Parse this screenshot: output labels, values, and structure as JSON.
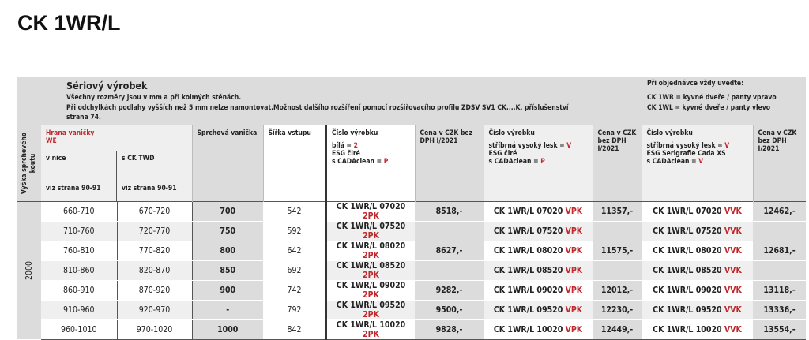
{
  "title": "CK 1WR/L",
  "band": {
    "heading": "Sériový výrobek",
    "line1": "Všechny rozměry jsou v mm a při kolmých stěnách.",
    "line2": "Při odchylkách podlahy vyšších než 5 mm nelze namontovat.Možnost dalšího rozšíření pomocí rozšiřovacího profilu ZDSV SV1 CK....K, příslušenství",
    "line3": "strana 74.",
    "order_title": "Při objednávce vždy uveďte:",
    "order1": "CK 1WR = kyvné dveře / panty vpravo",
    "order2": "CK 1WL = kyvné dveře / panty vlevo"
  },
  "headers": {
    "height": "Výška sprchového koutu",
    "edge": "Hrana vaničky",
    "edge2": "WE",
    "niche": "v nice",
    "twd": "s CK TWD",
    "see1": "viz strana 90-91",
    "see2": "viz strana 90-91",
    "tray": "Sprchová vanička",
    "width": "Šířka vstupu",
    "code": "Číslo výrobku",
    "white": "bílá = ",
    "white_c": "2",
    "esg": "ESG čiré",
    "clean": "s CADAclean = ",
    "clean_c": "P",
    "price": "Cena v CZK bez DPH I/2021",
    "silver": "stříbrná vysoký lesk = ",
    "silver_c": "V",
    "esg2": "ESG Serigrafie Cada XS",
    "clean3_c": "V"
  },
  "height_value": "2000",
  "rows": [
    {
      "niche": "660-710",
      "twd": "670-720",
      "tray": "700",
      "width": "542",
      "c1": "CK 1WR/L 07020 ",
      "s1": "2PK",
      "p1": "8518,-",
      "c2": "CK 1WR/L 07020 ",
      "s2": "VPK",
      "p2": "11357,-",
      "c3": "CK 1WR/L 07020 ",
      "s3": "VVK",
      "p3": "12462,-"
    },
    {
      "niche": "710-760",
      "twd": "720-770",
      "tray": "750",
      "width": "592",
      "c1": "CK 1WR/L 07520 ",
      "s1": "2PK",
      "p1": "",
      "c2": "CK 1WR/L 07520 ",
      "s2": "VPK",
      "p2": "",
      "c3": "CK 1WR/L 07520 ",
      "s3": "VVK",
      "p3": ""
    },
    {
      "niche": "760-810",
      "twd": "770-820",
      "tray": "800",
      "width": "642",
      "c1": "CK 1WR/L 08020 ",
      "s1": "2PK",
      "p1": "8627,-",
      "c2": "CK 1WR/L 08020 ",
      "s2": "VPK",
      "p2": "11575,-",
      "c3": "CK 1WR/L 08020 ",
      "s3": "VVK",
      "p3": "12681,-"
    },
    {
      "niche": "810-860",
      "twd": "820-870",
      "tray": "850",
      "width": "692",
      "c1": "CK 1WR/L 08520 ",
      "s1": "2PK",
      "p1": "",
      "c2": "CK 1WR/L 08520 ",
      "s2": "VPK",
      "p2": "",
      "c3": "CK 1WR/L 08520 ",
      "s3": "VVK",
      "p3": ""
    },
    {
      "niche": "860-910",
      "twd": "870-920",
      "tray": "900",
      "width": "742",
      "c1": "CK 1WR/L 09020 ",
      "s1": "2PK",
      "p1": "9282,-",
      "c2": "CK 1WR/L 09020 ",
      "s2": "VPK",
      "p2": "12012,-",
      "c3": "CK 1WR/L 09020 ",
      "s3": "VVK",
      "p3": "13118,-"
    },
    {
      "niche": "910-960",
      "twd": "920-970",
      "tray": "-",
      "width": "792",
      "c1": "CK 1WR/L 09520 ",
      "s1": "2PK",
      "p1": "9500,-",
      "c2": "CK 1WR/L 09520 ",
      "s2": "VPK",
      "p2": "12230,-",
      "c3": "CK 1WR/L 09520 ",
      "s3": "VVK",
      "p3": "13336,-"
    },
    {
      "niche": "960-1010",
      "twd": "970-1020",
      "tray": "1000",
      "width": "842",
      "c1": "CK 1WR/L 10020 ",
      "s1": "2PK",
      "p1": "9828,-",
      "c2": "CK 1WR/L 10020 ",
      "s2": "VPK",
      "p2": "12449,-",
      "c3": "CK 1WR/L 10020 ",
      "s3": "VVK",
      "p3": "13554,-"
    }
  ],
  "colors": {
    "accent": "#c0282d",
    "header_grey": "#dcdcdc",
    "row_alt": "#efefef"
  }
}
